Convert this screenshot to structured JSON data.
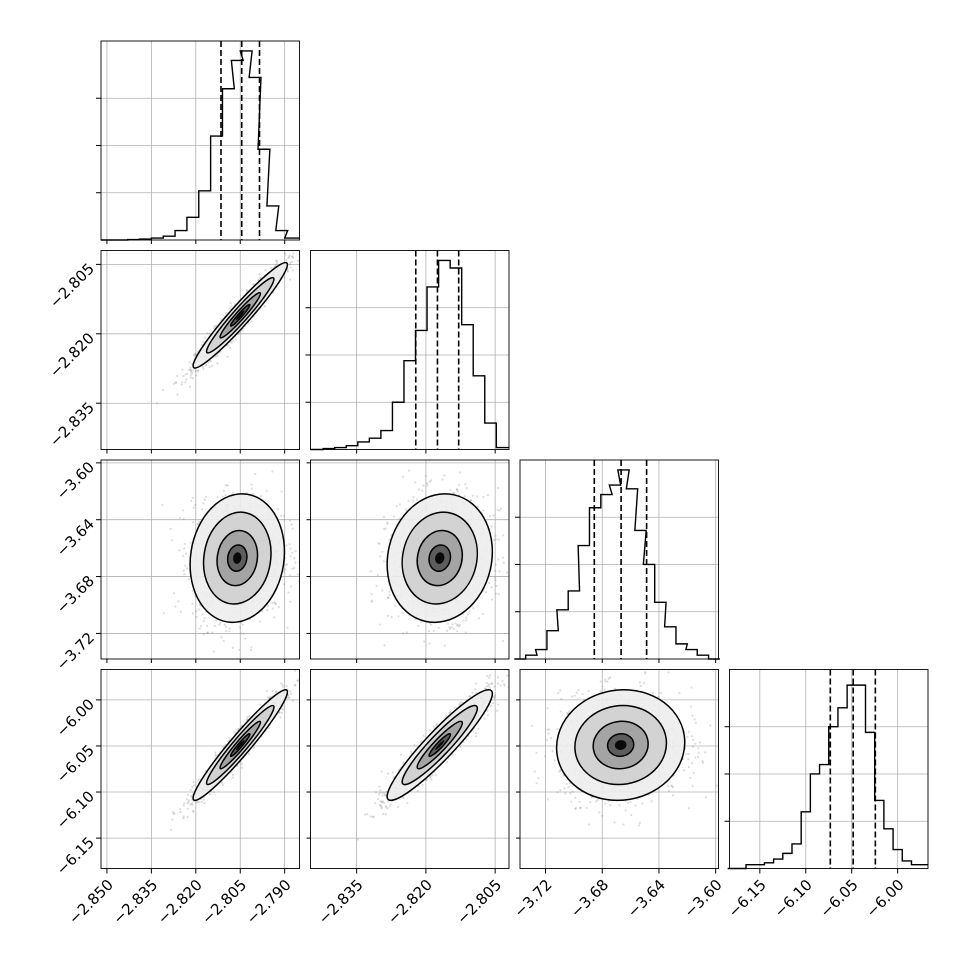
{
  "chart_data": {
    "type": "corner",
    "n_params": 4,
    "parameters": [
      {
        "range": [
          -2.852,
          -2.785
        ],
        "hist": [
          [
            -2.849,
            0
          ],
          [
            -2.845,
            0
          ],
          [
            -2.841,
            0.002
          ],
          [
            -2.837,
            0.005
          ],
          [
            -2.833,
            0.01
          ],
          [
            -2.829,
            0.02
          ],
          [
            -2.825,
            0.05
          ],
          [
            -2.821,
            0.12
          ],
          [
            -2.817,
            0.26
          ],
          [
            -2.813,
            0.55
          ],
          [
            -2.809,
            0.8
          ],
          [
            -2.806,
            0.95
          ],
          [
            -2.803,
            1.0
          ],
          [
            -2.8,
            0.86
          ],
          [
            -2.797,
            0.48
          ],
          [
            -2.794,
            0.18
          ],
          [
            -2.791,
            0.05
          ],
          [
            -2.788,
            0.01
          ]
        ],
        "quantiles": [
          -2.8115,
          -2.8045,
          -2.7985
        ],
        "hist_ticks": [
          0.25,
          0.5,
          0.75
        ],
        "x_ticks": [
          "−2.850",
          "−2.835",
          "−2.820",
          "−2.805",
          "−2.790"
        ],
        "x_tick_values": [
          -2.85,
          -2.835,
          -2.82,
          -2.805,
          -2.79
        ]
      },
      {
        "range": [
          -2.845,
          -2.802
        ],
        "hist": [
          [
            -2.8435,
            0
          ],
          [
            -2.841,
            0.005
          ],
          [
            -2.8385,
            0.01
          ],
          [
            -2.836,
            0.02
          ],
          [
            -2.8335,
            0.04
          ],
          [
            -2.831,
            0.06
          ],
          [
            -2.8285,
            0.1
          ],
          [
            -2.826,
            0.25
          ],
          [
            -2.8235,
            0.47
          ],
          [
            -2.821,
            0.63
          ],
          [
            -2.8185,
            0.86
          ],
          [
            -2.816,
            1.0
          ],
          [
            -2.8135,
            0.96
          ],
          [
            -2.811,
            0.66
          ],
          [
            -2.8085,
            0.39
          ],
          [
            -2.806,
            0.14
          ],
          [
            -2.8035,
            0.01
          ]
        ],
        "quantiles": [
          -2.8222,
          -2.8175,
          -2.8129
        ],
        "hist_ticks": [
          0.25,
          0.5,
          0.75
        ],
        "x_ticks": [
          "−2.835",
          "−2.820",
          "−2.805"
        ],
        "x_tick_values": [
          -2.835,
          -2.82,
          -2.805
        ],
        "y_ticks": [
          "−2.805",
          "−2.820",
          "−2.835"
        ],
        "y_tick_values": [
          -2.805,
          -2.82,
          -2.835
        ]
      },
      {
        "range": [
          -3.738,
          -3.598
        ],
        "hist": [
          [
            -3.738,
            0
          ],
          [
            -3.73,
            0.02
          ],
          [
            -3.723,
            0.05
          ],
          [
            -3.715,
            0.15
          ],
          [
            -3.708,
            0.26
          ],
          [
            -3.7,
            0.36
          ],
          [
            -3.693,
            0.6
          ],
          [
            -3.685,
            0.8
          ],
          [
            -3.677,
            0.87
          ],
          [
            -3.671,
            0.92
          ],
          [
            -3.665,
            1.0
          ],
          [
            -3.659,
            0.9
          ],
          [
            -3.653,
            0.68
          ],
          [
            -3.647,
            0.5
          ],
          [
            -3.639,
            0.3
          ],
          [
            -3.632,
            0.17
          ],
          [
            -3.624,
            0.08
          ],
          [
            -3.617,
            0.05
          ],
          [
            -3.609,
            0.02
          ],
          [
            -3.601,
            0
          ]
        ],
        "quantiles": [
          -3.6856,
          -3.6667,
          -3.6487
        ],
        "hist_ticks": [
          0.25,
          0.5,
          0.75
        ],
        "x_ticks": [
          "−3.72",
          "−3.68",
          "−3.64",
          "−3.60"
        ],
        "x_tick_values": [
          -3.72,
          -3.68,
          -3.64,
          -3.6
        ],
        "y_ticks": [
          "−3.60",
          "−3.64",
          "−3.68",
          "−3.72"
        ],
        "y_tick_values": [
          -3.6,
          -3.64,
          -3.68,
          -3.72
        ]
      },
      {
        "range": [
          -6.183,
          -5.967
        ],
        "hist": [
          [
            -6.18,
            0
          ],
          [
            -6.17,
            0
          ],
          [
            -6.16,
            0.02
          ],
          [
            -6.15,
            0.02
          ],
          [
            -6.14,
            0.03
          ],
          [
            -6.13,
            0.05
          ],
          [
            -6.12,
            0.08
          ],
          [
            -6.11,
            0.13
          ],
          [
            -6.1,
            0.3
          ],
          [
            -6.09,
            0.5
          ],
          [
            -6.08,
            0.55
          ],
          [
            -6.07,
            0.75
          ],
          [
            -6.06,
            0.85
          ],
          [
            -6.05,
            0.97
          ],
          [
            -6.04,
            0.97
          ],
          [
            -6.03,
            0.72
          ],
          [
            -6.02,
            0.36
          ],
          [
            -6.01,
            0.21
          ],
          [
            -6.0,
            0.1
          ],
          [
            -5.99,
            0.04
          ],
          [
            -5.98,
            0.02
          ]
        ],
        "quantiles": [
          -6.0733,
          -6.0484,
          -6.0243
        ],
        "hist_ticks": [
          0.25,
          0.5,
          0.75
        ],
        "x_ticks": [
          "−6.15",
          "−6.10",
          "−6.05",
          "−6.00"
        ],
        "x_tick_values": [
          -6.15,
          -6.1,
          -6.05,
          -6.0
        ],
        "y_ticks": [
          "−6.00",
          "−6.05",
          "−6.10",
          "−6.15"
        ],
        "y_tick_values": [
          -6.0,
          -6.05,
          -6.1,
          -6.15
        ]
      }
    ],
    "joint": [
      {
        "row": 1,
        "col": 0,
        "center": [
          -2.805,
          -2.816
        ],
        "rho": 0.96
      },
      {
        "row": 2,
        "col": 0,
        "center": [
          -2.806,
          -3.667
        ],
        "rho": 0.1
      },
      {
        "row": 2,
        "col": 1,
        "center": [
          -2.817,
          -3.667
        ],
        "rho": 0.1
      },
      {
        "row": 3,
        "col": 0,
        "center": [
          -2.805,
          -6.049
        ],
        "rho": 0.96
      },
      {
        "row": 3,
        "col": 1,
        "center": [
          -2.817,
          -6.049
        ],
        "rho": 0.93
      },
      {
        "row": 3,
        "col": 2,
        "center": [
          -3.667,
          -6.049
        ],
        "rho": 0.05
      }
    ],
    "grid": true,
    "colors": {
      "ink": "#000000",
      "grid": "#b0b0b0",
      "scatter": "#808080"
    }
  }
}
